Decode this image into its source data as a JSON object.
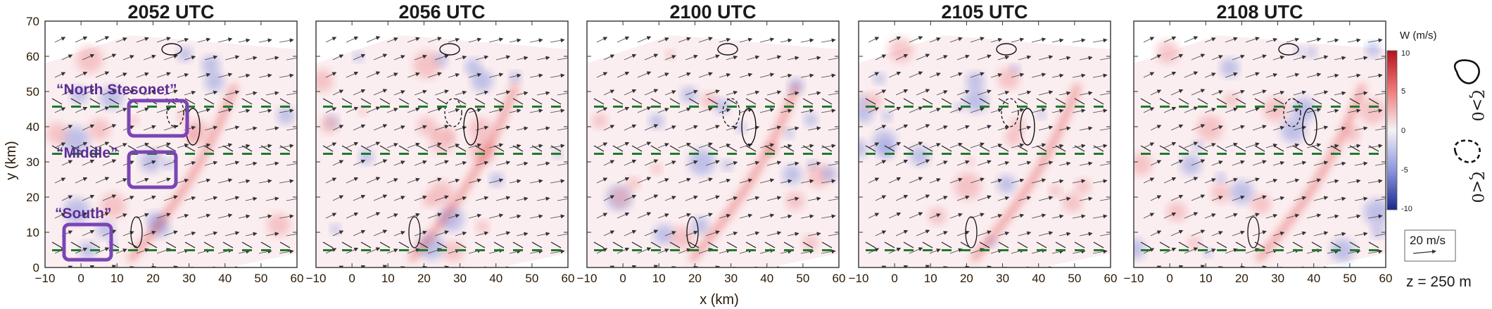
{
  "panels": [
    {
      "title": "2052 UTC"
    },
    {
      "title": "2056 UTC"
    },
    {
      "title": "2100 UTC"
    },
    {
      "title": "2105 UTC"
    },
    {
      "title": "2108 UTC"
    }
  ],
  "x_axis": {
    "label": "x (km)",
    "ticks": [
      "−10",
      "0",
      "10",
      "20",
      "30",
      "40",
      "50",
      "60"
    ]
  },
  "y_axis": {
    "label": "y (km)",
    "ticks": [
      "0",
      "10",
      "20",
      "30",
      "40",
      "50",
      "60",
      "70"
    ]
  },
  "regions": [
    {
      "label": "“North Stesonet”"
    },
    {
      "label": "“Middle”"
    },
    {
      "label": "“South”"
    }
  ],
  "colorbar": {
    "title": "W (m/s)",
    "ticks": [
      "10",
      "5",
      "0",
      "-5",
      "-10"
    ]
  },
  "legend": {
    "positive": "ζ>0",
    "negative": "ζ<0"
  },
  "reference_vector": {
    "label": "20 m/s"
  },
  "level_label": "z = 250 m",
  "colors": {
    "region_box": "#7a45b5",
    "updraft": "#e03a3a",
    "downdraft": "#5a66c8",
    "theta_text": "#1e7a2e"
  }
}
